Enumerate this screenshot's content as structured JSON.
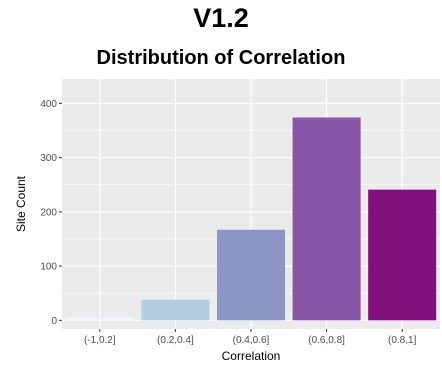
{
  "header": {
    "title": "V1.2",
    "subtitle": "Distribution of Correlation"
  },
  "chart_data": {
    "type": "bar",
    "title": "Distribution of Correlation",
    "xlabel": "Correlation",
    "ylabel": "Site Count",
    "categories": [
      "(-1,0.2]",
      "(0.2,0.4]",
      "(0.4,0.6]",
      "(0.6,0.8]",
      "(0.8,1]"
    ],
    "values": [
      5,
      38,
      167,
      374,
      241
    ],
    "colors": [
      "#edf8fb",
      "#b3cde3",
      "#8c96c6",
      "#8856a7",
      "#810f7c"
    ],
    "ylim": [
      -16,
      445
    ],
    "yticks": [
      0,
      100,
      200,
      300,
      400
    ],
    "grid": true,
    "panel_background": "#ebebeb",
    "legend": "none"
  }
}
